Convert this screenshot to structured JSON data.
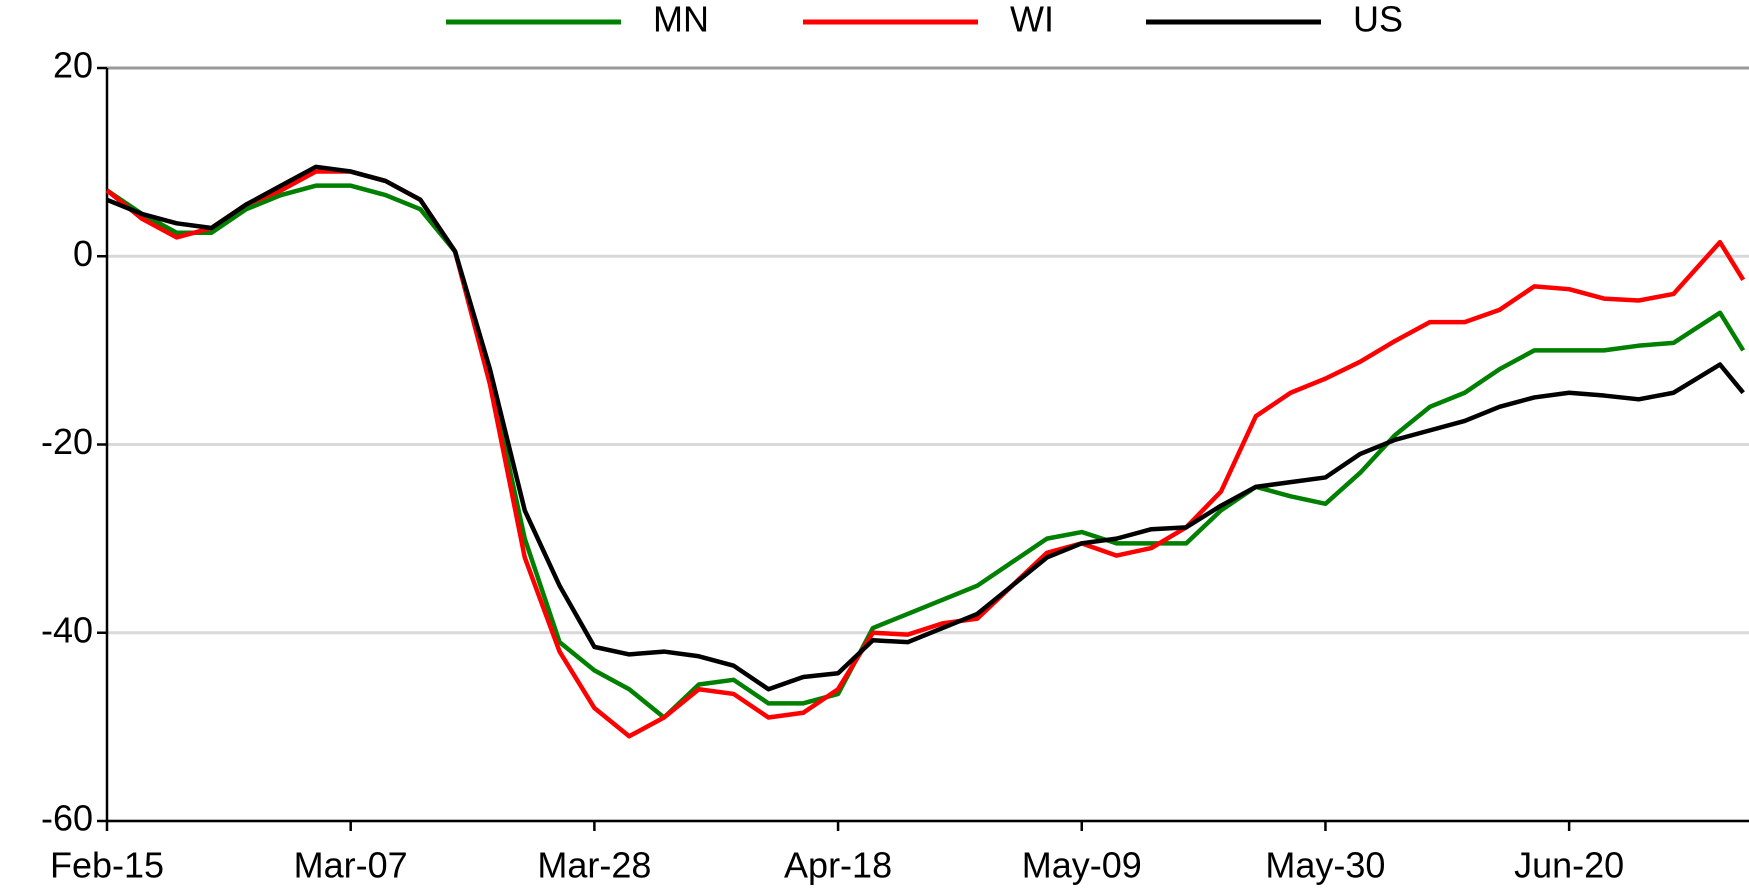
{
  "chart_data": {
    "type": "line",
    "x": [
      0,
      3,
      6,
      9,
      12,
      15,
      18,
      21,
      24,
      27,
      30,
      33,
      36,
      39,
      42,
      45,
      48,
      51,
      54,
      57,
      60,
      63,
      66,
      69,
      72,
      75,
      78,
      81,
      84,
      87,
      90,
      93,
      96,
      99,
      102,
      105,
      108,
      111,
      114,
      117,
      120,
      123,
      126,
      129,
      132,
      135,
      139,
      141
    ],
    "series": [
      {
        "name": "MN",
        "color": "#008000",
        "values": [
          7,
          4.5,
          2.5,
          2.5,
          5,
          6.5,
          7.5,
          7.5,
          6.5,
          5,
          0.5,
          -13,
          -30,
          -41,
          -44,
          -46,
          -49,
          -45.5,
          -45,
          -47.5,
          -47.5,
          -46.5,
          -39.5,
          -38,
          -36.5,
          -35,
          -32.5,
          -30,
          -29.3,
          -30.5,
          -30.5,
          -30.5,
          -27,
          -24.5,
          -25.5,
          -26.3,
          -23,
          -19,
          -16,
          -14.5,
          -12,
          -10,
          -10,
          -10,
          -9.5,
          -9.2,
          -6,
          -10
        ]
      },
      {
        "name": "WI",
        "color": "#ff0000",
        "values": [
          7,
          4,
          2,
          3,
          5.5,
          7,
          9,
          9,
          8,
          6,
          0.5,
          -13.6,
          -32,
          -42,
          -48,
          -51,
          -49,
          -46,
          -46.5,
          -49,
          -48.5,
          -46,
          -40,
          -40.2,
          -39,
          -38.5,
          -35,
          -31.5,
          -30.5,
          -31.8,
          -31,
          -28.8,
          -25,
          -17,
          -14.5,
          -13,
          -11.2,
          -9,
          -7,
          -7,
          -5.7,
          -3.2,
          -3.5,
          -4.5,
          -4.7,
          -4,
          1.5,
          -2.5
        ]
      },
      {
        "name": "US",
        "color": "#000000",
        "values": [
          6,
          4.5,
          3.5,
          3,
          5.5,
          7.5,
          9.5,
          9,
          8,
          6,
          0.5,
          -12,
          -27,
          -35,
          -41.5,
          -42.3,
          -42,
          -42.5,
          -43.5,
          -46,
          -44.7,
          -44.3,
          -40.8,
          -41,
          -39.5,
          -38,
          -35,
          -32,
          -30.5,
          -30,
          -29,
          -28.8,
          -26.5,
          -24.5,
          -24,
          -23.5,
          -21,
          -19.5,
          -18.5,
          -17.5,
          -16,
          -15,
          -14.5,
          -14.8,
          -15.2,
          -14.5,
          -11.5,
          -14.5
        ]
      }
    ],
    "xlim": [
      0,
      141.5
    ],
    "xticks": [
      {
        "value": 0,
        "label": "Feb-15"
      },
      {
        "value": 21,
        "label": "Mar-07"
      },
      {
        "value": 42,
        "label": "Mar-28"
      },
      {
        "value": 63,
        "label": "Apr-18"
      },
      {
        "value": 84,
        "label": "May-09"
      },
      {
        "value": 105,
        "label": "May-30"
      },
      {
        "value": 126,
        "label": "Jun-20"
      }
    ],
    "ylim": [
      -60,
      20
    ],
    "yticks": [
      -60,
      -40,
      -20,
      0,
      20
    ],
    "grid": true,
    "legend": "top"
  }
}
